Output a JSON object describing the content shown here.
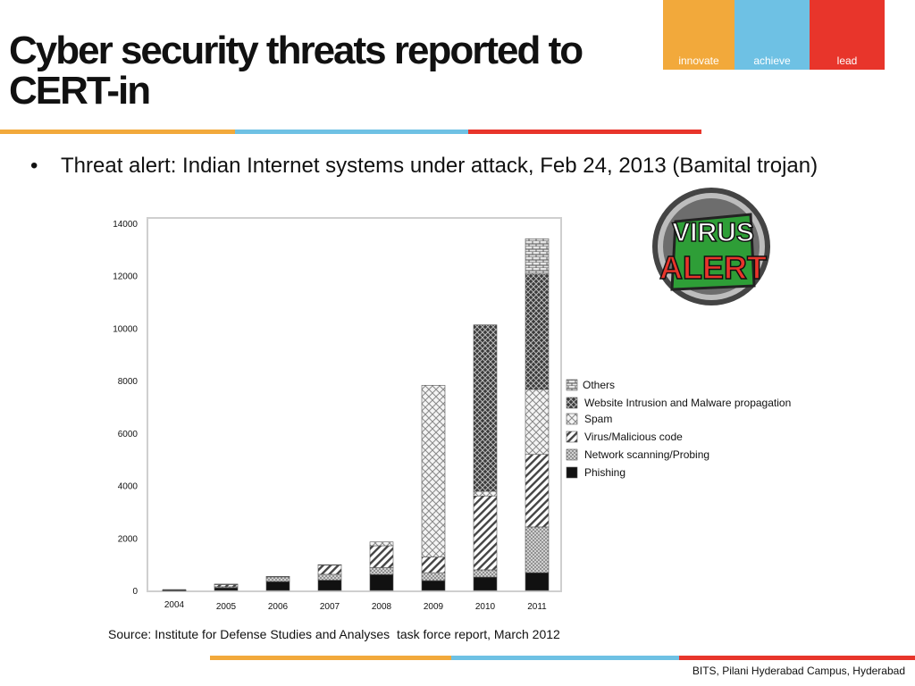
{
  "slide": {
    "title": "Cyber security threats reported to CERT-in",
    "bullet_marker": "•",
    "bullet": "Threat alert: Indian Internet systems under attack, Feb 24, 2013 (Bamital trojan)",
    "source": "Source: Institute for Defense Studies and Analyses  task force report, March 2012",
    "footer": "BITS, Pilani Hyderabad Campus, Hyderabad"
  },
  "logo": {
    "segments": [
      {
        "label": "innovate",
        "color": "#f2a93b"
      },
      {
        "label": "achieve",
        "color": "#6ec1e4"
      },
      {
        "label": "lead",
        "color": "#e8352b"
      }
    ]
  },
  "badge": {
    "line1": "VIRUS",
    "line2": "ALERT",
    "colors": {
      "ring": "#555555",
      "inner": "#9a9a9a",
      "banner": "#2e9e37",
      "text_top": "#ffffff",
      "text_bottom": "#e8352b"
    }
  },
  "colors": {
    "orange": "#f2a93b",
    "blue": "#6ec1e4",
    "red": "#e8352b"
  },
  "chart_data": {
    "type": "bar",
    "stacked": true,
    "categories": [
      "2004",
      "2005",
      "2006",
      "2007",
      "2008",
      "2009",
      "2010",
      "2011"
    ],
    "ylim": [
      0,
      14000
    ],
    "yticks": [
      0,
      2000,
      4000,
      6000,
      8000,
      10000,
      12000,
      14000
    ],
    "grid": false,
    "legend_position": "right",
    "series": [
      {
        "name": "Phishing",
        "values": [
          3,
          101,
          339,
          392,
          604,
          374,
          508,
          674
        ],
        "pattern": "solid"
      },
      {
        "name": "Network scanning/Probing",
        "values": [
          11,
          40,
          177,
          223,
          265,
          303,
          277,
          1748
        ],
        "pattern": "dots"
      },
      {
        "name": "Virus/Malicious code",
        "values": [
          5,
          95,
          19,
          358,
          835,
          596,
          2817,
          2765
        ],
        "pattern": "diagonal"
      },
      {
        "name": "Spam",
        "values": [
          0,
          0,
          0,
          8,
          145,
          6548,
          181,
          2480
        ],
        "pattern": "checker"
      },
      {
        "name": "Website Intrusion and Malware propagation",
        "values": [
          4,
          4,
          0,
          0,
          0,
          0,
          6344,
          4394
        ],
        "pattern": "crosshatch"
      },
      {
        "name": "Others",
        "values": [
          0,
          0,
          0,
          0,
          0,
          0,
          0,
          1351
        ],
        "pattern": "brick"
      }
    ]
  }
}
